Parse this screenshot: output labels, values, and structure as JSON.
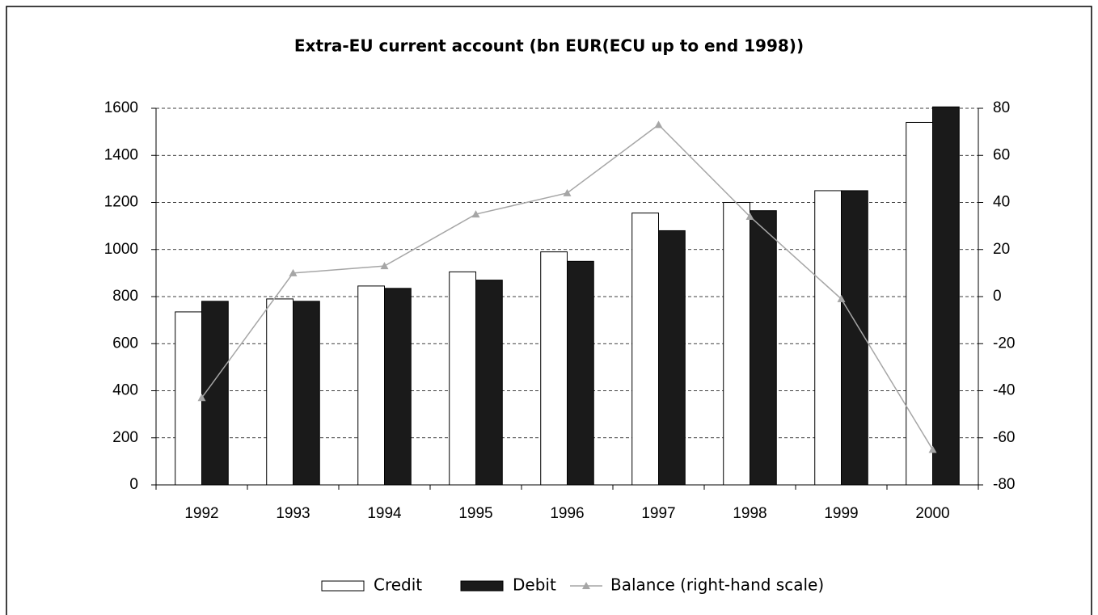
{
  "chart_data": {
    "type": "bar_line",
    "title": "Extra-EU current account (bn EUR(ECU up to end 1998))",
    "categories": [
      "1992",
      "1993",
      "1994",
      "1995",
      "1996",
      "1997",
      "1998",
      "1999",
      "2000"
    ],
    "series": [
      {
        "name": "Credit",
        "color": "#ffffff",
        "values": [
          735,
          790,
          845,
          905,
          990,
          1155,
          1200,
          1250,
          1540
        ]
      },
      {
        "name": "Debit",
        "color": "#1a1a1a",
        "values": [
          780,
          780,
          835,
          870,
          950,
          1080,
          1165,
          1250,
          1606
        ]
      },
      {
        "name": "Balance (right-hand scale)",
        "color": "#a6a6a6",
        "axis": "y2",
        "values": [
          -43,
          10,
          13,
          35,
          44,
          73,
          34,
          -1,
          -65
        ]
      }
    ],
    "ylim": [
      0,
      1600
    ],
    "yticks": [
      0,
      200,
      400,
      600,
      800,
      1000,
      1200,
      1400,
      1600
    ],
    "y2lim": [
      -80,
      80
    ],
    "y2ticks": [
      -80,
      -60,
      -40,
      -20,
      0,
      20,
      40,
      60,
      80
    ],
    "grid": true,
    "legend": "bottom"
  }
}
